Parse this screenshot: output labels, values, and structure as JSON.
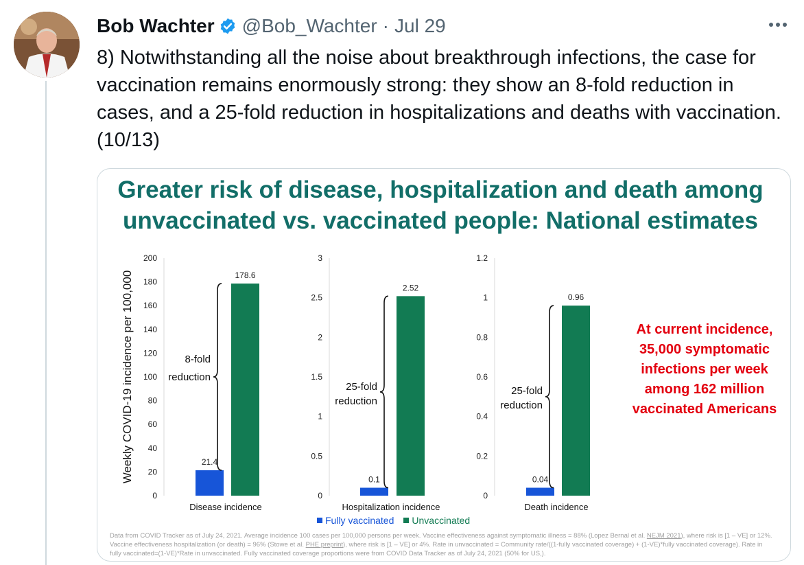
{
  "tweet": {
    "author_name": "Bob Wachter",
    "handle": "@Bob_Wachter",
    "separator": "·",
    "date": "Jul 29",
    "text": "8) Notwithstanding all the noise about breakthrough infections, the case for vaccination remains enormously strong: they show an 8-fold reduction in cases, and a 25-fold reduction in hospitalizations and deaths with vaccination.(10/13)"
  },
  "icons": {
    "verified": "verified-badge-icon",
    "more": "more-options-icon",
    "avatar": "profile-photo"
  },
  "colors": {
    "title": "#126e68",
    "fully_vaccinated": "#1755d8",
    "unvaccinated": "#127b53",
    "callout": "#e3000f",
    "verified": "#1d9bf0"
  },
  "slide": {
    "title_line1": "Greater risk of disease, hospitalization and death among",
    "title_line2": "unvaccinated vs. vaccinated people: National estimates",
    "callout": "At current incidence, 35,000 symptomatic infections per week among 162 million vaccinated Americans",
    "legend": {
      "fully": "Fully vaccinated",
      "unvax": "Unvaccinated"
    },
    "footnote_part1": "Data from COVID Tracker as of July 24, 2021. Average incidence 100 cases per 100,000 persons per week. Vaccine effectiveness against symptomatic illness = 88% (Lopez Bernal et al. ",
    "footnote_link1": "NEJM 2021",
    "footnote_part2": "), where risk is [1 – VE] or 12%. Vaccine effectiveness hospitalization (or death) = 96% (Stowe et al. ",
    "footnote_link2": "PHE preprint",
    "footnote_part3": "), where risk is [1 – VE] or 4%. Rate in unvaccinated = Community rate/((1-fully vaccinated coverage) + (1-VE)*fully vaccinated coverage). Rate in fully vaccinated=(1-VE)*Rate in unvaccinated. Fully vaccinated coverage proportions were from COVID Data Tracker as of July 24, 2021 (50% for US,)."
  },
  "chart_data": [
    {
      "type": "bar",
      "ylabel": "Weekly COVID-19 incidence per 100,000",
      "xlabel": "Disease incidence",
      "ylim": [
        0,
        200
      ],
      "yticks": [
        "0",
        "20",
        "40",
        "60",
        "80",
        "100",
        "120",
        "140",
        "160",
        "180",
        "200"
      ],
      "series": [
        {
          "name": "Fully vaccinated",
          "values": [
            21.4
          ],
          "labels": [
            "21.4"
          ]
        },
        {
          "name": "Unvaccinated",
          "values": [
            178.6
          ],
          "labels": [
            "178.6"
          ]
        }
      ],
      "annotation": [
        "8-fold",
        "reduction"
      ]
    },
    {
      "type": "bar",
      "xlabel": "Hospitalization incidence",
      "ylim": [
        0,
        3
      ],
      "yticks": [
        "0",
        "0.5",
        "1",
        "1.5",
        "2",
        "2.5",
        "3"
      ],
      "series": [
        {
          "name": "Fully vaccinated",
          "values": [
            0.1
          ],
          "labels": [
            "0.1"
          ]
        },
        {
          "name": "Unvaccinated",
          "values": [
            2.52
          ],
          "labels": [
            "2.52"
          ]
        }
      ],
      "annotation": [
        "25-fold",
        "reduction"
      ]
    },
    {
      "type": "bar",
      "xlabel": "Death incidence",
      "ylim": [
        0,
        1.2
      ],
      "yticks": [
        "0",
        "0.2",
        "0.4",
        "0.6",
        "0.8",
        "1",
        "1.2"
      ],
      "series": [
        {
          "name": "Fully vaccinated",
          "values": [
            0.04
          ],
          "labels": [
            "0.04"
          ]
        },
        {
          "name": "Unvaccinated",
          "values": [
            0.96
          ],
          "labels": [
            "0.96"
          ]
        }
      ],
      "annotation": [
        "25-fold",
        "reduction"
      ]
    }
  ]
}
